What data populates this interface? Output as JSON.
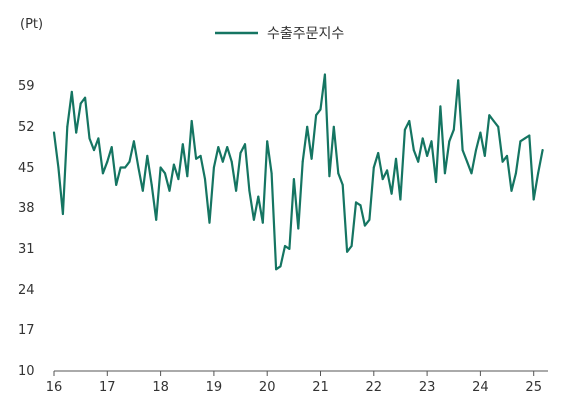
{
  "chart_data": {
    "type": "line",
    "unit_label": "(Pt)",
    "title": "",
    "xlabel": "",
    "ylabel": "",
    "ylim": [
      10,
      66
    ],
    "y_ticks": [
      "59",
      "52",
      "45",
      "38",
      "31",
      "24",
      "17",
      "10"
    ],
    "x_ticks": [
      "16",
      "17",
      "18",
      "19",
      "20",
      "21",
      "22",
      "23",
      "24",
      "25"
    ],
    "grid": false,
    "legend_position": "top-center",
    "color": "#157562",
    "series": [
      {
        "name": "수출주문지수",
        "x": [
          16.0,
          16.0833,
          16.1667,
          16.25,
          16.3333,
          16.4167,
          16.5,
          16.5833,
          16.6667,
          16.75,
          16.8333,
          16.9167,
          17.0,
          17.0833,
          17.1667,
          17.25,
          17.3333,
          17.4167,
          17.5,
          17.5833,
          17.6667,
          17.75,
          17.8333,
          17.9167,
          18.0,
          18.0833,
          18.1667,
          18.25,
          18.3333,
          18.4167,
          18.5,
          18.5833,
          18.6667,
          18.75,
          18.8333,
          18.9167,
          19.0,
          19.0833,
          19.1667,
          19.25,
          19.3333,
          19.4167,
          19.5,
          19.5833,
          19.6667,
          19.75,
          19.8333,
          19.9167,
          20.0,
          20.0833,
          20.1667,
          20.25,
          20.3333,
          20.4167,
          20.5,
          20.5833,
          20.6667,
          20.75,
          20.8333,
          20.9167,
          21.0,
          21.0833,
          21.1667,
          21.25,
          21.3333,
          21.4167,
          21.5,
          21.5833,
          21.6667,
          21.75,
          21.8333,
          21.9167,
          22.0,
          22.0833,
          22.1667,
          22.25,
          22.3333,
          22.4167,
          22.5,
          22.5833,
          22.6667,
          22.75,
          22.8333,
          22.9167,
          23.0,
          23.0833,
          23.1667,
          23.25,
          23.3333,
          23.4167,
          23.5,
          23.5833,
          23.6667,
          23.75,
          23.8333,
          23.9167,
          24.0,
          24.0833,
          24.1667,
          24.25,
          24.3333,
          24.4167,
          24.5,
          24.5833,
          24.6667,
          24.75,
          24.8333,
          24.9167,
          25.0,
          25.0833,
          25.1667
        ],
        "values": [
          51.0,
          45.0,
          37.0,
          52.0,
          58.0,
          51.0,
          56.0,
          57.0,
          50.0,
          48.0,
          50.0,
          44.0,
          46.0,
          48.5,
          42.0,
          45.0,
          45.0,
          46.0,
          49.5,
          45.0,
          41.0,
          47.0,
          42.0,
          36.0,
          45.0,
          44.0,
          41.0,
          45.5,
          43.0,
          49.0,
          43.5,
          53.0,
          46.5,
          47.0,
          43.0,
          35.5,
          45.0,
          48.5,
          46.0,
          48.5,
          46.0,
          41.0,
          47.5,
          49.0,
          41.0,
          36.0,
          40.0,
          35.5,
          49.5,
          44.0,
          27.5,
          28.0,
          31.5,
          31.0,
          43.0,
          34.5,
          46.0,
          52.0,
          46.5,
          54.0,
          55.0,
          61.0,
          43.5,
          52.0,
          44.0,
          42.0,
          30.5,
          31.5,
          39.0,
          38.5,
          35.0,
          36.0,
          45.0,
          47.5,
          43.0,
          44.5,
          40.5,
          46.5,
          39.5,
          51.5,
          53.0,
          48.0,
          46.0,
          50.0,
          47.0,
          49.5,
          42.5,
          55.5,
          44.0,
          49.5,
          51.5,
          60.0,
          48.0,
          46.0,
          44.0,
          48.0,
          51.0,
          47.0,
          54.0,
          53.0,
          52.0,
          46.0,
          47.0,
          41.0,
          44.0,
          49.5,
          50.0,
          50.5,
          39.5,
          44.0,
          48.0
        ]
      }
    ]
  }
}
